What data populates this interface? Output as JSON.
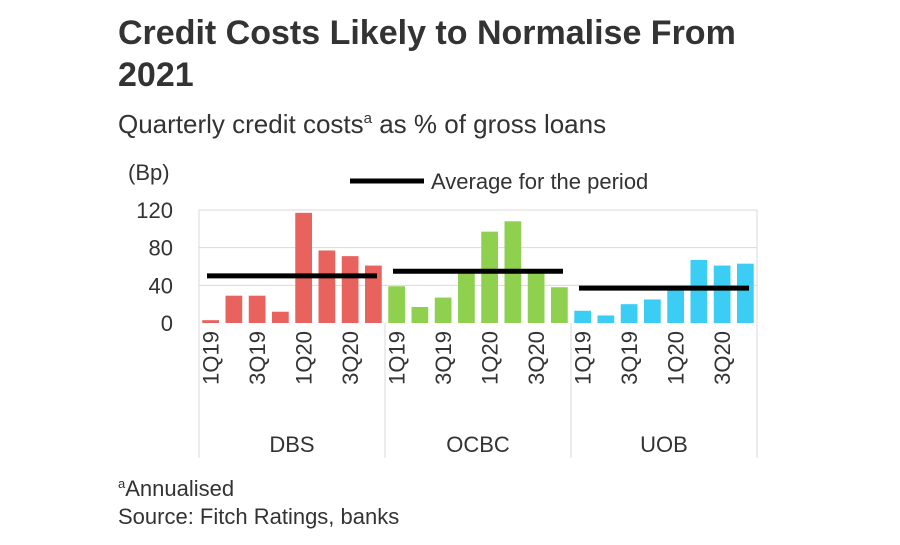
{
  "title": "Credit Costs Likely to Normalise From 2021",
  "subtitle": {
    "text": "Quarterly credit costs",
    "sup": "a",
    "suffix": " as % of gross loans"
  },
  "footnote": {
    "sup": "a",
    "text": "Annualised"
  },
  "source": "Source: Fitch Ratings, banks",
  "chart_data": {
    "type": "bar",
    "ylabel": "(Bp)",
    "ylim": [
      0,
      120
    ],
    "yticks": [
      0,
      40,
      80,
      120
    ],
    "grid": true,
    "legend": {
      "label": "Average for the period",
      "placement": "top"
    },
    "groups": [
      {
        "name": "DBS",
        "color": "#e8625e",
        "categories": [
          "1Q19",
          "2Q19",
          "3Q19",
          "4Q19",
          "1Q20",
          "2Q20",
          "3Q20",
          "4Q20"
        ],
        "tick_labels": [
          "1Q19",
          "3Q19",
          "1Q20",
          "3Q20"
        ],
        "values": [
          3,
          29,
          29,
          12,
          117,
          77,
          71,
          61
        ],
        "average": 50
      },
      {
        "name": "OCBC",
        "color": "#8fd14f",
        "categories": [
          "1Q19",
          "2Q19",
          "3Q19",
          "4Q19",
          "1Q20",
          "2Q20",
          "3Q20",
          "4Q20"
        ],
        "tick_labels": [
          "1Q19",
          "3Q19",
          "1Q20",
          "3Q20"
        ],
        "values": [
          39,
          17,
          27,
          53,
          97,
          108,
          53,
          38
        ],
        "average": 55
      },
      {
        "name": "UOB",
        "color": "#3ccdf5",
        "categories": [
          "1Q19",
          "2Q19",
          "3Q19",
          "4Q19",
          "1Q20",
          "2Q20",
          "3Q20",
          "4Q20"
        ],
        "tick_labels": [
          "1Q19",
          "3Q19",
          "1Q20",
          "3Q20"
        ],
        "values": [
          13,
          8,
          20,
          25,
          37,
          67,
          61,
          63
        ],
        "average": 37
      }
    ]
  }
}
